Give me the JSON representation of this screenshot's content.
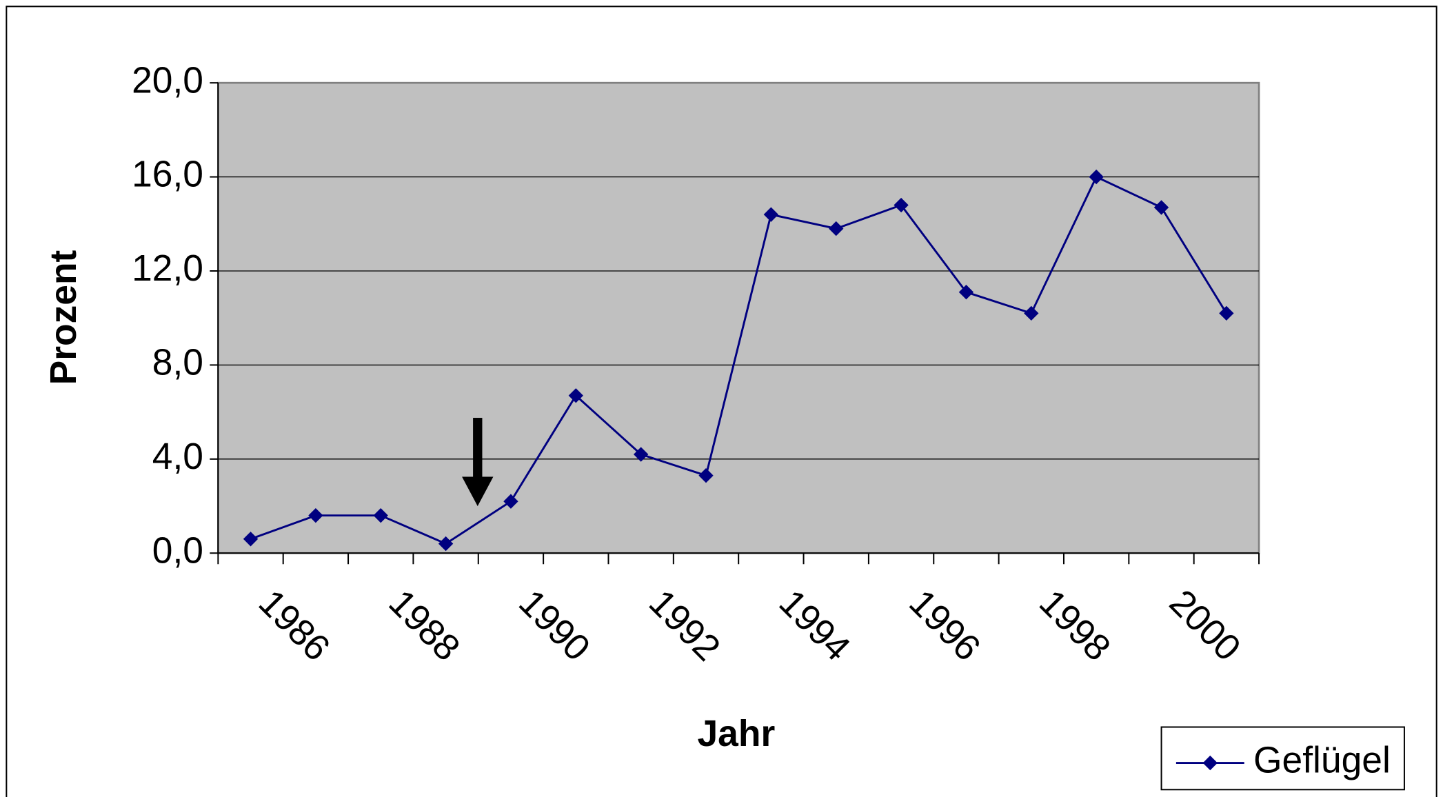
{
  "chart_data": {
    "type": "line",
    "x_label": "Jahr",
    "y_label": "Prozent",
    "categories": [
      "1986",
      null,
      "1988",
      null,
      "1990",
      null,
      "1992",
      null,
      "1994",
      null,
      "1996",
      null,
      "1998",
      null,
      "2000",
      null
    ],
    "series": [
      {
        "name": "Geflügel",
        "color": "#000080",
        "values": [
          0.6,
          1.6,
          1.6,
          0.4,
          2.2,
          6.7,
          4.2,
          3.3,
          14.4,
          13.8,
          14.8,
          11.1,
          10.2,
          16.0,
          14.7,
          10.2
        ]
      }
    ],
    "ylim": [
      0,
      20
    ],
    "yticks": [
      {
        "value": 0,
        "label": "0,0"
      },
      {
        "value": 4,
        "label": "4,0"
      },
      {
        "value": 8,
        "label": "8,0"
      },
      {
        "value": 12,
        "label": "12,0"
      },
      {
        "value": 16,
        "label": "16,0"
      },
      {
        "value": 20,
        "label": "20,0"
      }
    ],
    "grid": true,
    "legend": "bottom-right"
  }
}
